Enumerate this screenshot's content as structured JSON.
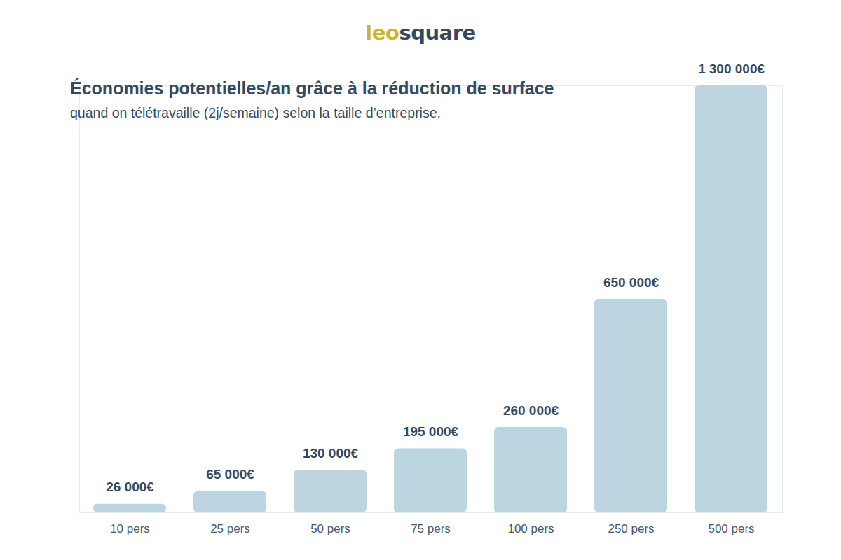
{
  "chart_data": {
    "type": "bar",
    "logo": "leosquare",
    "title": "Économies potentielles/an grâce à la réduction de surface",
    "subtitle": "quand on télétravaille (2j/semaine) selon la taille d’entreprise.",
    "categories": [
      "10 pers",
      "25 pers",
      "50 pers",
      "75 pers",
      "100 pers",
      "250 pers",
      "500 pers"
    ],
    "values": [
      26000,
      65000,
      130000,
      195000,
      260000,
      650000,
      1300000
    ],
    "value_labels": [
      "26 000€",
      "65 000€",
      "130 000€",
      "195 000€",
      "260 000€",
      "650 000€",
      "1 300 000€"
    ],
    "color": "#bcd5e0",
    "ylim": [
      0,
      1300000
    ],
    "yticks": [],
    "tick_labels": "x",
    "data_labels": true
  }
}
